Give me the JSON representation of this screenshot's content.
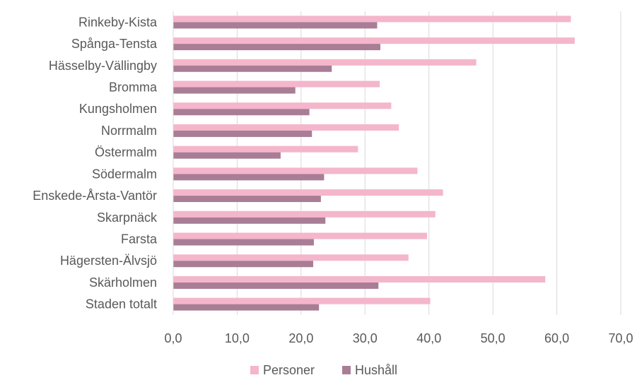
{
  "chart_data": {
    "type": "bar",
    "orientation": "horizontal",
    "title": "",
    "xlabel": "",
    "ylabel": "",
    "categories": [
      "Rinkeby-Kista",
      "Spånga-Tensta",
      "Hässelby-Vällingby",
      "Bromma",
      "Kungsholmen",
      "Norrmalm",
      "Östermalm",
      "Södermalm",
      "Enskede-Årsta-Vantör",
      "Skarpnäck",
      "Farsta",
      "Hägersten-Älvsjö",
      "Skärholmen",
      "Staden totalt"
    ],
    "series": [
      {
        "name": "Personer",
        "color": "#f4b6cb",
        "values": [
          62.2,
          62.8,
          47.4,
          32.3,
          34.1,
          35.3,
          28.9,
          38.2,
          42.2,
          41.0,
          39.7,
          36.8,
          58.2,
          40.2
        ]
      },
      {
        "name": "Hushåll",
        "color": "#a97d96",
        "values": [
          31.9,
          32.4,
          24.8,
          19.1,
          21.3,
          21.7,
          16.8,
          23.6,
          23.1,
          23.8,
          22.0,
          21.9,
          32.1,
          22.8
        ]
      }
    ],
    "xlim": [
      0,
      70
    ],
    "xticks": [
      "0,0",
      "10,0",
      "20,0",
      "30,0",
      "40,0",
      "50,0",
      "60,0",
      "70,0"
    ],
    "grid": true,
    "legend_position": "bottom"
  }
}
